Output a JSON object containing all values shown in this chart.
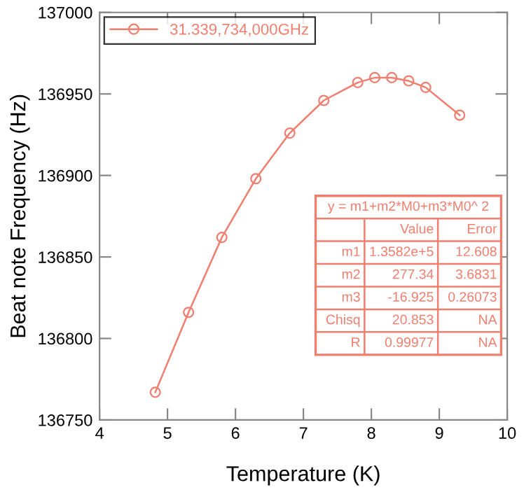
{
  "chart_data": {
    "type": "line",
    "xlabel": "Temperature (K)",
    "ylabel": "Beat note Frequency (Hz)",
    "series": [
      {
        "name": "31.339,734,000GHz",
        "color": "#f07e6e",
        "x": [
          4.82,
          5.31,
          5.8,
          6.3,
          6.8,
          7.3,
          7.8,
          8.05,
          8.3,
          8.55,
          8.8,
          9.3
        ],
        "values": [
          136767,
          136816,
          136862,
          136898,
          136926,
          136946,
          136957,
          136960,
          136960,
          136958,
          136954,
          136937
        ]
      }
    ],
    "marker": "circle",
    "line_style": "solid",
    "legend": "top left",
    "grid": false,
    "xlim": [
      4,
      10
    ],
    "xticks": [
      4,
      5,
      6,
      7,
      8,
      9,
      10
    ],
    "ylim": [
      136750,
      137000
    ],
    "yticks": [
      136750,
      136800,
      136850,
      136900,
      136950,
      137000
    ],
    "annotations": [
      "y = m1+m2*M0+m3*M0^ 2",
      "Value",
      "Error",
      "m1",
      "1.3582e+5",
      "12.608",
      "m2",
      "277.34",
      "3.6831",
      "m3",
      "-16.925",
      "0.26073",
      "Chisq",
      "20.853",
      "NA",
      "R",
      "0.99977",
      "NA"
    ]
  }
}
